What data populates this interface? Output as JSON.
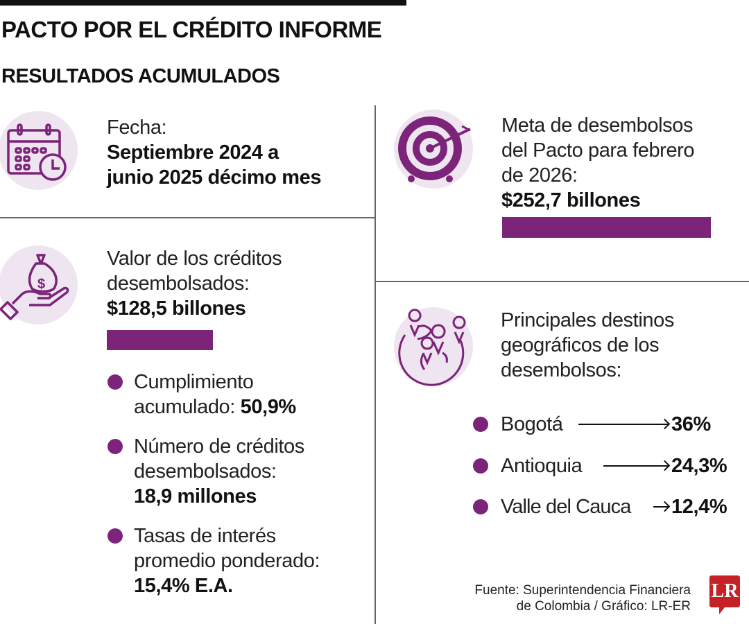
{
  "header": {
    "title": "PACTO POR EL CRÉDITO INFORME",
    "subtitle": "RESULTADOS ACUMULADOS"
  },
  "colors": {
    "accent": "#7b2479",
    "icon_bg": "#efe5f0",
    "logo": "#c62127"
  },
  "fecha": {
    "icon": "calendar-clock-icon",
    "label": "Fecha:",
    "value_line1": "Septiembre 2024 a",
    "value_line2": "junio 2025 décimo mes"
  },
  "valor": {
    "icon": "money-bag-hand-icon",
    "label_line1": "Valor de los créditos",
    "label_line2": "desembolsados:",
    "value": "$128,5 billones",
    "amount": 128.5
  },
  "meta": {
    "icon": "target-arrow-icon",
    "label_line1": "Meta de desembolsos",
    "label_line2": "del Pacto para febrero",
    "label_line3": "de 2026:",
    "value": "$252,7 billones",
    "amount": 252.7
  },
  "stats": [
    {
      "line1": "Cumplimiento",
      "line2_prefix": "acumulado: ",
      "value": "50,9%"
    },
    {
      "line1": "Número de créditos",
      "line2": "desembolsados:",
      "value": "18,9 millones"
    },
    {
      "line1": "Tasas de interés",
      "line2": "promedio ponderado:",
      "value": "15,4% E.A."
    }
  ],
  "destinos": {
    "icon": "globe-location-pins-icon",
    "label_line1": "Principales destinos",
    "label_line2": "geográficos de los",
    "label_line3": "desembolsos:",
    "items": [
      {
        "name": "Bogotá",
        "value": "36%"
      },
      {
        "name": "Antioquia",
        "value": "24,3%"
      },
      {
        "name": "Valle del Cauca",
        "value": "12,4%"
      }
    ]
  },
  "footer": {
    "source_line1": "Fuente: Superintendencia Financiera",
    "source_line2": "de Colombia / Gráfico: LR-ER",
    "logo_text": "LR"
  }
}
